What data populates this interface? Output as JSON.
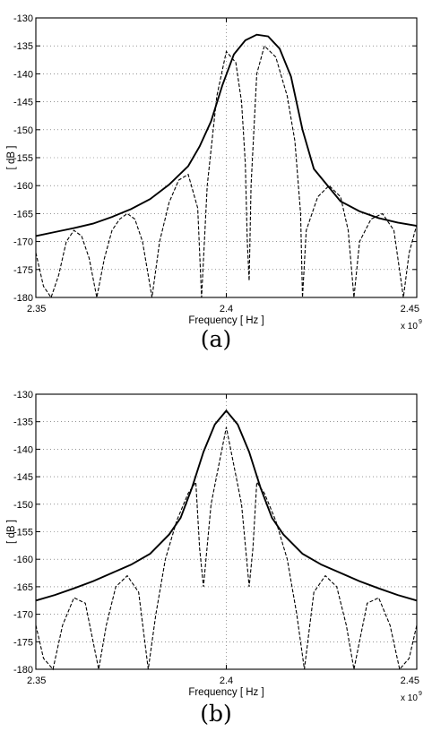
{
  "chart_data": [
    {
      "type": "line",
      "caption": "(a)",
      "xlabel": "Frequency [ Hz ]",
      "ylabel": "[ dB ]",
      "x_multiplier": "x 10",
      "x_multiplier_exp": "9",
      "xlim": [
        2.35,
        2.45
      ],
      "ylim": [
        -180,
        -130
      ],
      "xticks": [
        "2.35",
        "2.4",
        "2.45"
      ],
      "yticks": [
        "-130",
        "-135",
        "-140",
        "-145",
        "-150",
        "-155",
        "-160",
        "-165",
        "-170",
        "-175",
        "-180"
      ],
      "grid": true,
      "series": [
        {
          "style": "solid",
          "x": [
            2.35,
            2.355,
            2.36,
            2.365,
            2.37,
            2.375,
            2.38,
            2.385,
            2.39,
            2.393,
            2.396,
            2.399,
            2.402,
            2.405,
            2.408,
            2.411,
            2.414,
            2.417,
            2.42,
            2.423,
            2.426,
            2.43,
            2.435,
            2.44,
            2.445,
            2.45
          ],
          "values": [
            -169,
            -168.3,
            -167.6,
            -166.8,
            -165.6,
            -164.2,
            -162.4,
            -159.8,
            -156.5,
            -153,
            -148.5,
            -142,
            -136.5,
            -134,
            -133,
            -133.3,
            -135.5,
            -140.5,
            -150,
            -157,
            -159.5,
            -162.8,
            -164.6,
            -165.8,
            -166.6,
            -167.2
          ]
        },
        {
          "style": "dashed",
          "x": [
            2.35,
            2.352,
            2.354,
            2.356,
            2.358,
            2.36,
            2.362,
            2.364,
            2.366,
            2.368,
            2.37,
            2.372,
            2.374,
            2.376,
            2.378,
            2.3805,
            2.3825,
            2.385,
            2.3875,
            2.39,
            2.3925,
            2.3935,
            2.395,
            2.3975,
            2.4,
            2.4025,
            2.404,
            2.405,
            2.4055,
            2.406,
            2.4065,
            2.408,
            2.41,
            2.413,
            2.416,
            2.418,
            2.4195,
            2.42,
            2.421,
            2.424,
            2.427,
            2.43,
            2.432,
            2.4335,
            2.435,
            2.438,
            2.441,
            2.444,
            2.4465,
            2.448,
            2.45
          ],
          "values": [
            -172,
            -178,
            -180,
            -176,
            -170,
            -168,
            -169,
            -173,
            -180,
            -173,
            -168,
            -166,
            -165,
            -166,
            -170,
            -180,
            -170,
            -163,
            -159,
            -158,
            -164,
            -180,
            -160,
            -144,
            -136,
            -138,
            -145,
            -156,
            -170,
            -177,
            -160,
            -140,
            -135,
            -137,
            -144,
            -152,
            -165,
            -180,
            -168,
            -162,
            -160,
            -162,
            -168,
            -180,
            -170,
            -166,
            -165,
            -168,
            -180,
            -172,
            -167
          ]
        }
      ]
    },
    {
      "type": "line",
      "caption": "(b)",
      "xlabel": "Frequency [ Hz ]",
      "ylabel": "[ dB ]",
      "x_multiplier": "x 10",
      "x_multiplier_exp": "9",
      "xlim": [
        2.35,
        2.45
      ],
      "ylim": [
        -180,
        -130
      ],
      "xticks": [
        "2.35",
        "2.4",
        "2.45"
      ],
      "yticks": [
        "-130",
        "-135",
        "-140",
        "-145",
        "-150",
        "-155",
        "-160",
        "-165",
        "-170",
        "-175",
        "-180"
      ],
      "grid": true,
      "series": [
        {
          "style": "solid",
          "x": [
            2.35,
            2.355,
            2.36,
            2.365,
            2.37,
            2.375,
            2.38,
            2.385,
            2.388,
            2.391,
            2.394,
            2.397,
            2.4,
            2.403,
            2.406,
            2.409,
            2.412,
            2.415,
            2.42,
            2.425,
            2.43,
            2.435,
            2.44,
            2.445,
            2.45
          ],
          "values": [
            -167.5,
            -166.5,
            -165.3,
            -164,
            -162.5,
            -161,
            -159,
            -155.5,
            -152.5,
            -147,
            -140.5,
            -135.5,
            -133,
            -135.5,
            -140.5,
            -147,
            -152.5,
            -155.5,
            -159,
            -161,
            -162.5,
            -164,
            -165.3,
            -166.5,
            -167.5
          ]
        },
        {
          "style": "dashed",
          "x": [
            2.35,
            2.352,
            2.3545,
            2.357,
            2.36,
            2.363,
            2.3665,
            2.3685,
            2.371,
            2.374,
            2.377,
            2.3795,
            2.3815,
            2.384,
            2.387,
            2.39,
            2.392,
            2.393,
            2.394,
            2.396,
            2.4,
            2.404,
            2.406,
            2.407,
            2.408,
            2.41,
            2.413,
            2.416,
            2.4185,
            2.4205,
            2.423,
            2.426,
            2.429,
            2.4315,
            2.4335,
            2.437,
            2.44,
            2.443,
            2.4455,
            2.448,
            2.45
          ],
          "values": [
            -172,
            -178,
            -180,
            -172,
            -167,
            -168,
            -180,
            -172,
            -165,
            -163,
            -166,
            -180,
            -170,
            -160,
            -153,
            -148,
            -146,
            -158,
            -165,
            -150,
            -136,
            -150,
            -165,
            -158,
            -146,
            -148,
            -153,
            -160,
            -170,
            -180,
            -166,
            -163,
            -165,
            -172,
            -180,
            -168,
            -167,
            -172,
            -180,
            -178,
            -172
          ]
        }
      ]
    }
  ]
}
